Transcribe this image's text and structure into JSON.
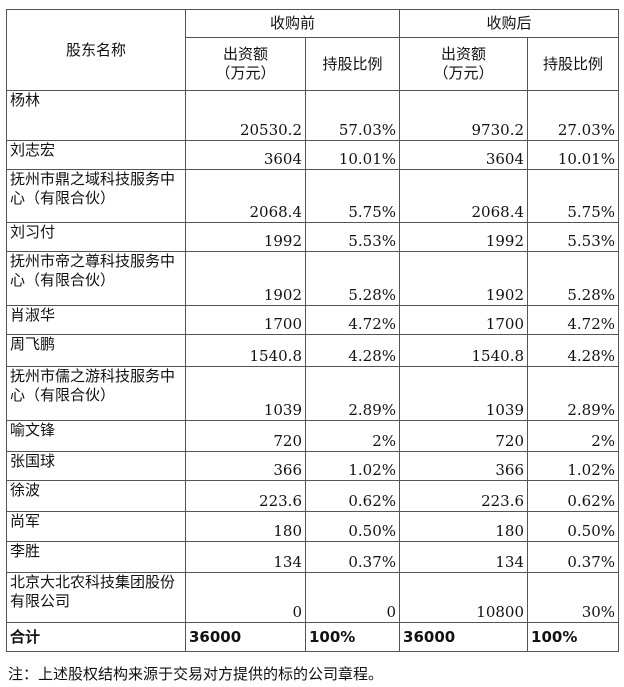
{
  "headers": {
    "shareholder_name": "股东名称",
    "before": "收购前",
    "after": "收购后",
    "capital": "出资额\n（万元）",
    "ratio": "持股比例"
  },
  "rows": [
    {
      "name": "杨林",
      "cap_before": "20530.2",
      "ratio_before": "57.03%",
      "cap_after": "9730.2",
      "ratio_after": "27.03%"
    },
    {
      "name": "刘志宏",
      "cap_before": "3604",
      "ratio_before": "10.01%",
      "cap_after": "3604",
      "ratio_after": "10.01%"
    },
    {
      "name": "抚州市鼎之域科技服务中心（有限合伙）",
      "cap_before": "2068.4",
      "ratio_before": "5.75%",
      "cap_after": "2068.4",
      "ratio_after": "5.75%"
    },
    {
      "name": "刘习付",
      "cap_before": "1992",
      "ratio_before": "5.53%",
      "cap_after": "1992",
      "ratio_after": "5.53%"
    },
    {
      "name": "抚州市帝之尊科技服务中心（有限合伙）",
      "cap_before": "1902",
      "ratio_before": "5.28%",
      "cap_after": "1902",
      "ratio_after": "5.28%"
    },
    {
      "name": "肖淑华",
      "cap_before": "1700",
      "ratio_before": "4.72%",
      "cap_after": "1700",
      "ratio_after": "4.72%"
    },
    {
      "name": "周飞鹏",
      "cap_before": "1540.8",
      "ratio_before": "4.28%",
      "cap_after": "1540.8",
      "ratio_after": "4.28%"
    },
    {
      "name": "抚州市儒之游科技服务中心（有限合伙）",
      "cap_before": "1039",
      "ratio_before": "2.89%",
      "cap_after": "1039",
      "ratio_after": "2.89%"
    },
    {
      "name": "喻文锋",
      "cap_before": "720",
      "ratio_before": "2%",
      "cap_after": "720",
      "ratio_after": "2%"
    },
    {
      "name": "张国球",
      "cap_before": "366",
      "ratio_before": "1.02%",
      "cap_after": "366",
      "ratio_after": "1.02%"
    },
    {
      "name": "徐波",
      "cap_before": "223.6",
      "ratio_before": "0.62%",
      "cap_after": "223.6",
      "ratio_after": "0.62%"
    },
    {
      "name": "尚军",
      "cap_before": "180",
      "ratio_before": "0.50%",
      "cap_after": "180",
      "ratio_after": "0.50%"
    },
    {
      "name": "李胜",
      "cap_before": "134",
      "ratio_before": "0.37%",
      "cap_after": "134",
      "ratio_after": "0.37%"
    },
    {
      "name": "北京大北农科技集团股份有限公司",
      "cap_before": "0",
      "ratio_before": "0",
      "cap_after": "10800",
      "ratio_after": "30%"
    }
  ],
  "total": {
    "label": "合计",
    "cap_before": "36000",
    "ratio_before": "100%",
    "cap_after": "36000",
    "ratio_after": "100%"
  },
  "note": "注：上述股权结构来源于交易对方提供的标的公司章程。"
}
